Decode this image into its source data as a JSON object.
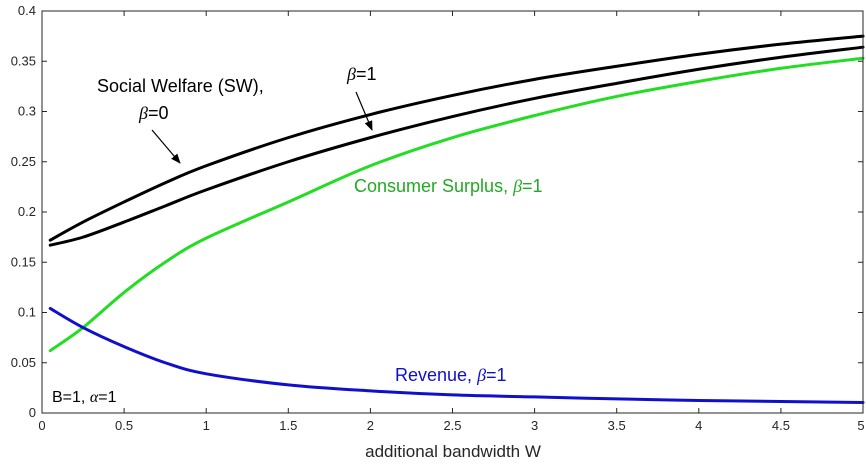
{
  "chart_data": {
    "type": "line",
    "title": "",
    "xlabel": "additional bandwidth W",
    "ylabel": "",
    "xlim": [
      0,
      5
    ],
    "ylim": [
      0,
      0.4
    ],
    "grid": false,
    "x_ticks": [
      "0",
      "0.5",
      "1",
      "1.5",
      "2",
      "2.5",
      "3",
      "3.5",
      "4",
      "4.5",
      "5"
    ],
    "y_ticks": [
      "0",
      "0.05",
      "0.1",
      "0.15",
      "0.2",
      "0.25",
      "0.3",
      "0.35",
      "0.4"
    ],
    "x": [
      0.05,
      0.25,
      0.5,
      0.75,
      1,
      1.5,
      2,
      2.5,
      3,
      3.5,
      4,
      4.5,
      5
    ],
    "series": [
      {
        "name": "Social Welfare (SW), β=0",
        "color": "#000000",
        "values": [
          0.172,
          0.19,
          0.21,
          0.229,
          0.246,
          0.274,
          0.297,
          0.316,
          0.332,
          0.345,
          0.357,
          0.367,
          0.375
        ]
      },
      {
        "name": "Social Welfare (SW), β=1",
        "color": "#000000",
        "values": [
          0.167,
          0.175,
          0.19,
          0.206,
          0.222,
          0.25,
          0.274,
          0.295,
          0.313,
          0.328,
          0.342,
          0.354,
          0.364
        ]
      },
      {
        "name": "Consumer Surplus, β=1",
        "color": "#22dd22",
        "values": [
          0.062,
          0.085,
          0.12,
          0.15,
          0.174,
          0.21,
          0.246,
          0.274,
          0.296,
          0.315,
          0.33,
          0.343,
          0.353
        ]
      },
      {
        "name": "Revenue, β=1",
        "color": "#1010cc",
        "values": [
          0.104,
          0.085,
          0.066,
          0.05,
          0.039,
          0.028,
          0.022,
          0.018,
          0.016,
          0.014,
          0.0125,
          0.0115,
          0.0105
        ]
      }
    ],
    "annotations": {
      "sw_label_line1": "Social Welfare (SW),",
      "sw_beta0_symbol": "β",
      "sw_beta0_value": "=0",
      "sw_beta1_symbol": "β",
      "sw_beta1_value": "=1",
      "cs_label": "Consumer Surplus, ",
      "cs_symbol": "β",
      "cs_value": "=1",
      "rev_label": "Revenue, ",
      "rev_symbol": "β",
      "rev_value": "=1",
      "params_b": "B=1, ",
      "params_symbol": "α",
      "params_value": "=1"
    }
  }
}
